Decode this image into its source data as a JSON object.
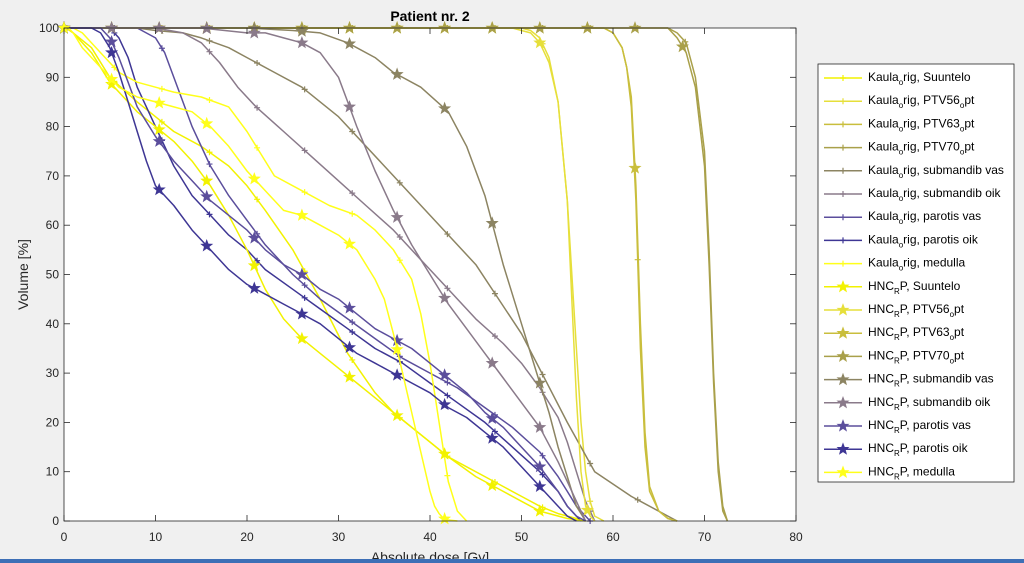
{
  "chart_data": {
    "type": "line",
    "title": "Patient nr. 2",
    "xlabel": "Absolute dose [Gy]",
    "ylabel": "Volume [%]",
    "xlim": [
      0,
      80
    ],
    "ylim": [
      0,
      100
    ],
    "xticks": [
      0,
      10,
      20,
      30,
      40,
      50,
      60,
      70,
      80
    ],
    "yticks": [
      0,
      10,
      20,
      30,
      40,
      50,
      60,
      70,
      80,
      90,
      100
    ],
    "grid": false,
    "legend_placement": "outside-right",
    "series": [
      {
        "name": "Kaula_orig, Suuntelo",
        "legend_main": "Kaula",
        "legend_sub": "o",
        "legend_rest": "rig, Suuntelo",
        "color": "#f2f200",
        "marker": "plus",
        "x": [
          0,
          0.3,
          1,
          3,
          5,
          8,
          10,
          12,
          15,
          18,
          20,
          22,
          25,
          28,
          31,
          34,
          36,
          38,
          40,
          42,
          44,
          46,
          48,
          50,
          52,
          54,
          56,
          57
        ],
        "y": [
          100,
          100,
          99,
          96,
          90,
          85,
          82,
          79,
          76,
          72,
          68,
          63,
          55,
          45,
          34,
          26,
          22,
          19,
          16,
          13,
          11,
          9,
          7,
          5,
          3,
          1.5,
          0.5,
          0
        ]
      },
      {
        "name": "Kaula_orig, PTV56_opt",
        "legend_main": "Kaula",
        "legend_sub": "o",
        "legend_rest": "rig, PTV56",
        "legend_sub2": "o",
        "legend_rest2": "pt",
        "color": "#e6df3a",
        "marker": "plus",
        "x": [
          0,
          50,
          51,
          52,
          53,
          54,
          55,
          56,
          56.5,
          57,
          57.5,
          58,
          59
        ],
        "y": [
          100,
          100,
          99.5,
          98,
          94,
          85,
          65,
          35,
          20,
          10,
          4,
          1,
          0
        ]
      },
      {
        "name": "Kaula_orig, PTV63_opt",
        "legend_main": "Kaula",
        "legend_sub": "o",
        "legend_rest": "rig, PTV63",
        "legend_sub2": "o",
        "legend_rest2": "pt",
        "color": "#c9be3c",
        "marker": "plus",
        "x": [
          0,
          59,
          60,
          61,
          61.5,
          62,
          62.5,
          63,
          63.5,
          64,
          65,
          66,
          67
        ],
        "y": [
          100,
          100,
          99,
          96,
          92,
          84,
          65,
          35,
          15,
          6,
          2,
          0.5,
          0
        ]
      },
      {
        "name": "Kaula_orig, PTV70_opt",
        "legend_main": "Kaula",
        "legend_sub": "o",
        "legend_rest": "rig, PTV70",
        "legend_sub2": "o",
        "legend_rest2": "pt",
        "color": "#a9a04a",
        "marker": "plus",
        "x": [
          0,
          66,
          67,
          68,
          69,
          70,
          70.5,
          71,
          71.5,
          72,
          72.5
        ],
        "y": [
          100,
          100,
          99,
          97,
          90,
          75,
          55,
          30,
          12,
          3,
          0
        ]
      },
      {
        "name": "Kaula_orig, submandib vas",
        "legend_main": "Kaula",
        "legend_sub": "o",
        "legend_rest": "rig, submandib vas",
        "color": "#8c8462",
        "marker": "plus",
        "x": [
          5,
          8,
          10,
          13,
          15,
          18,
          20,
          23,
          26,
          30,
          35,
          40,
          45,
          50,
          55,
          58,
          62,
          66,
          67
        ],
        "y": [
          100,
          100,
          99.5,
          99,
          98,
          96,
          94,
          91,
          88,
          82,
          72,
          62,
          52,
          38,
          20,
          10,
          5,
          1,
          0
        ]
      },
      {
        "name": "Kaula_orig, submandib oik",
        "legend_main": "Kaula",
        "legend_sub": "o",
        "legend_rest": "rig, submandib oik",
        "color": "#8a7a8a",
        "marker": "plus",
        "x": [
          5,
          10,
          13,
          15,
          17,
          19,
          21,
          24,
          27,
          30,
          33,
          36,
          39,
          42,
          45,
          48,
          50,
          52,
          54,
          55,
          56,
          57,
          58
        ],
        "y": [
          100,
          100,
          99,
          97,
          93,
          88,
          84,
          79,
          74,
          69,
          64,
          59,
          53,
          47,
          41,
          36,
          32,
          27,
          21,
          16,
          10,
          4,
          0
        ]
      },
      {
        "name": "Kaula_orig, parotis vas",
        "legend_main": "Kaula",
        "legend_sub": "o",
        "legend_rest": "rig, parotis vas",
        "color": "#5b4e9c",
        "marker": "plus",
        "x": [
          5,
          8,
          10,
          11,
          12,
          14,
          16,
          18,
          20,
          22,
          25,
          28,
          31,
          34,
          37,
          40,
          43,
          46,
          49,
          52,
          54,
          55,
          56,
          57,
          57.5
        ],
        "y": [
          100,
          100,
          98,
          95,
          90,
          80,
          72,
          66,
          61,
          56,
          50,
          45,
          41,
          37,
          33,
          30,
          27,
          23,
          19,
          14,
          9,
          6,
          3,
          1,
          0
        ]
      },
      {
        "name": "Kaula_orig, parotis oik",
        "legend_main": "Kaula",
        "legend_sub": "o",
        "legend_rest": "rig, parotis oik",
        "color": "#3e3694",
        "marker": "plus",
        "x": [
          3,
          5,
          6,
          7,
          8,
          10,
          12,
          14,
          16,
          18,
          20,
          22,
          25,
          28,
          31,
          34,
          37,
          40,
          43,
          46,
          49,
          52,
          54,
          55,
          56,
          56.5
        ],
        "y": [
          100,
          100,
          98,
          94,
          88,
          80,
          72,
          66,
          62,
          58,
          55,
          51,
          47,
          43,
          39,
          35,
          32,
          28,
          24,
          20,
          15,
          10,
          6,
          3,
          1,
          0
        ]
      },
      {
        "name": "Kaula_orig, medulla",
        "legend_main": "Kaula",
        "legend_sub": "o",
        "legend_rest": "rig, medulla",
        "color": "#ffff1a",
        "marker": "plus",
        "x": [
          0,
          1,
          2,
          4,
          6,
          8,
          10,
          12,
          15,
          18,
          20,
          23,
          26,
          29,
          32,
          34,
          36,
          38,
          39,
          40,
          41,
          42,
          43,
          44
        ],
        "y": [
          100,
          100,
          99,
          95,
          91,
          89,
          88,
          87,
          86,
          84,
          79,
          70,
          67,
          64,
          62,
          59,
          55,
          49,
          42,
          32,
          20,
          8,
          2,
          0
        ]
      },
      {
        "name": "HNC_RP, Suuntelo",
        "legend_main": "HNC",
        "legend_sub": "R",
        "legend_rest": "P, Suuntelo",
        "color": "#f2f200",
        "marker": "star",
        "x": [
          0,
          0.2,
          1,
          3,
          5,
          8,
          10,
          12,
          14,
          16,
          18,
          20,
          22,
          24,
          26,
          28,
          30,
          32,
          34,
          36,
          38,
          40,
          42,
          45,
          48,
          50,
          52,
          55,
          57
        ],
        "y": [
          100,
          100,
          99,
          95,
          89,
          83,
          80,
          77,
          73,
          68,
          62,
          55,
          47,
          41,
          37,
          34,
          31,
          28,
          25,
          22,
          19,
          16,
          13,
          9,
          6,
          4,
          2,
          0.5,
          0
        ]
      },
      {
        "name": "HNC_RP, PTV56_opt",
        "legend_main": "HNC",
        "legend_sub": "R",
        "legend_rest": "P, PTV56",
        "legend_sub2": "o",
        "legend_rest2": "pt",
        "color": "#e6df3a",
        "marker": "star",
        "x": [
          0,
          49,
          50,
          51,
          52,
          53,
          54,
          55,
          55.5,
          56,
          56.5,
          57,
          57.5,
          58
        ],
        "y": [
          100,
          100,
          99.5,
          99,
          97,
          93,
          85,
          65,
          45,
          25,
          10,
          3,
          1,
          0
        ]
      },
      {
        "name": "HNC_RP, PTV63_opt",
        "legend_main": "HNC",
        "legend_sub": "R",
        "legend_rest": "P, PTV63",
        "legend_sub2": "o",
        "legend_rest2": "pt",
        "color": "#c9be3c",
        "marker": "star",
        "x": [
          0,
          59,
          60,
          61,
          61.5,
          62,
          62.5,
          63,
          63.5,
          64,
          65,
          66,
          67
        ],
        "y": [
          100,
          100,
          99,
          96,
          92,
          86,
          68,
          40,
          18,
          7,
          2,
          0.5,
          0
        ]
      },
      {
        "name": "HNC_RP, PTV70_opt",
        "legend_main": "HNC",
        "legend_sub": "R",
        "legend_rest": "P, PTV70",
        "legend_sub2": "o",
        "legend_rest2": "pt",
        "color": "#a9a04a",
        "marker": "star",
        "x": [
          0,
          66,
          67,
          68,
          69,
          70,
          70.5,
          71,
          71.5,
          72,
          72.5
        ],
        "y": [
          100,
          100,
          98,
          95,
          88,
          72,
          52,
          28,
          10,
          2,
          0
        ]
      },
      {
        "name": "HNC_RP, submandib vas",
        "legend_main": "HNC",
        "legend_sub": "R",
        "legend_rest": "P, submandib vas",
        "color": "#8c8462",
        "marker": "star",
        "x": [
          5,
          20,
          25,
          28,
          31,
          34,
          36,
          39,
          42,
          44,
          46,
          48,
          50,
          51,
          52,
          53,
          54,
          55,
          56,
          57
        ],
        "y": [
          100,
          100,
          99.5,
          99,
          97,
          94,
          91,
          88,
          83,
          76,
          66,
          52,
          40,
          34,
          28,
          22,
          15,
          9,
          3,
          0
        ]
      },
      {
        "name": "HNC_RP, submandib oik",
        "legend_main": "HNC",
        "legend_sub": "R",
        "legend_rest": "P, submandib oik",
        "color": "#8a7a8a",
        "marker": "star",
        "x": [
          5,
          15,
          20,
          22,
          24,
          26,
          28,
          30,
          31,
          32,
          34,
          36,
          38,
          40,
          42,
          44,
          46,
          48,
          50,
          52,
          54,
          55,
          56,
          57
        ],
        "y": [
          100,
          100,
          99,
          99,
          98,
          97,
          95,
          90,
          85,
          80,
          71,
          63,
          56,
          50,
          44,
          39,
          34,
          29,
          24,
          19,
          12,
          8,
          4,
          0
        ]
      },
      {
        "name": "HNC_RP, parotis vas",
        "legend_main": "HNC",
        "legend_sub": "R",
        "legend_rest": "P, parotis vas",
        "color": "#5b4e9c",
        "marker": "star",
        "x": [
          4,
          5,
          6,
          7,
          8,
          10,
          12,
          14,
          16,
          18,
          20,
          22,
          24,
          26,
          28,
          30,
          32,
          34,
          36,
          38,
          40,
          42,
          44,
          46,
          48,
          50,
          52,
          54,
          55,
          56,
          57
        ],
        "y": [
          100,
          98,
          94,
          89,
          84,
          78,
          73,
          69,
          65,
          62,
          59,
          55,
          52,
          50,
          47,
          45,
          42,
          39,
          37,
          35,
          32,
          29,
          26,
          22,
          19,
          15,
          11,
          6,
          3,
          1,
          0
        ]
      },
      {
        "name": "HNC_RP, parotis oik",
        "legend_main": "HNC",
        "legend_sub": "R",
        "legend_rest": "P, parotis oik",
        "color": "#3e3694",
        "marker": "star",
        "x": [
          3,
          4,
          5,
          6,
          7,
          8,
          9,
          10,
          12,
          14,
          16,
          18,
          20,
          22,
          24,
          26,
          28,
          30,
          32,
          34,
          36,
          38,
          40,
          42,
          44,
          46,
          48,
          50,
          52,
          54,
          55,
          56
        ],
        "y": [
          100,
          99,
          96,
          91,
          85,
          79,
          73,
          68,
          64,
          59,
          55,
          51,
          48,
          46,
          44,
          42,
          40,
          37,
          34,
          32,
          30,
          28,
          26,
          23,
          21,
          18,
          15,
          11,
          7,
          3,
          1,
          0
        ]
      },
      {
        "name": "HNC_RP, medulla",
        "legend_main": "HNC",
        "legend_sub": "R",
        "legend_rest": "P, medulla",
        "color": "#ffff1a",
        "marker": "star",
        "x": [
          0,
          0.5,
          1,
          2,
          4,
          6,
          8,
          10,
          12,
          14,
          16,
          18,
          20,
          22,
          24,
          26,
          28,
          30,
          32,
          34,
          35,
          36,
          37,
          38,
          39,
          40,
          40.5,
          41,
          41.5,
          42,
          43
        ],
        "y": [
          100,
          100,
          99,
          96,
          92,
          88,
          86,
          85,
          84,
          83,
          80,
          76,
          71,
          67,
          63,
          62,
          60,
          58,
          55,
          49,
          45,
          38,
          30,
          22,
          14,
          6,
          3,
          1.5,
          0.5,
          0.2,
          0
        ]
      }
    ]
  }
}
